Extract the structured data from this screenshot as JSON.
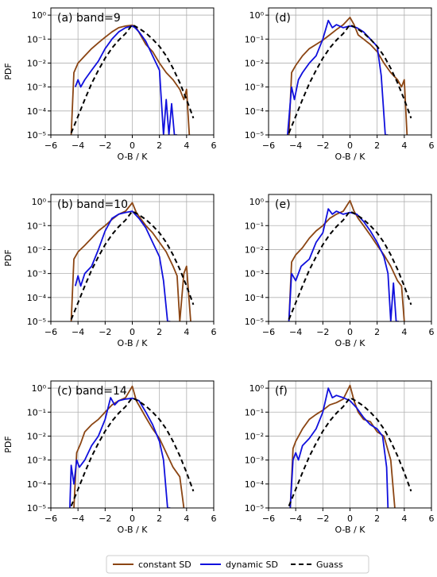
{
  "figure": {
    "legend": {
      "items": [
        {
          "label": "constant SD",
          "color": "#8B4513",
          "style": "solid"
        },
        {
          "label": "dynamic SD",
          "color": "#1010DD",
          "style": "solid"
        },
        {
          "label": "Guass",
          "color": "#000000",
          "style": "dashed"
        }
      ]
    }
  },
  "chart_data": [
    {
      "type": "line",
      "panel_label": "(a) band=9",
      "xlabel": "O-B / K",
      "ylabel": "PDF",
      "xlim": [
        -6,
        6
      ],
      "ylim": [
        1e-05,
        2
      ],
      "yscale": "log",
      "xticks": [
        "−6",
        "−4",
        "−2",
        "0",
        "2",
        "4",
        "6"
      ],
      "yticks": [
        "10⁰",
        "10⁻¹",
        "10⁻²",
        "10⁻³",
        "10⁻⁴",
        "10⁻⁵"
      ],
      "grid": true,
      "show_ylabel": true,
      "series": [
        {
          "name": "constant SD",
          "color": "#8B4513",
          "x": [
            -4.5,
            -4.3,
            -4.0,
            -3.5,
            -3.0,
            -2.5,
            -2.0,
            -1.5,
            -1.0,
            -0.5,
            0.0,
            0.3,
            0.6,
            1.0,
            1.5,
            2.0,
            2.5,
            3.0,
            3.5,
            3.8,
            4.0,
            4.2
          ],
          "y": [
            1e-05,
            0.004,
            0.01,
            0.02,
            0.04,
            0.07,
            0.12,
            0.2,
            0.3,
            0.35,
            0.38,
            0.3,
            0.15,
            0.06,
            0.03,
            0.01,
            0.004,
            0.002,
            0.0008,
            0.0003,
            0.0008,
            1e-05
          ]
        },
        {
          "name": "dynamic SD",
          "color": "#1010DD",
          "x": [
            -4.2,
            -4.0,
            -3.8,
            -3.5,
            -3.0,
            -2.5,
            -2.0,
            -1.5,
            -1.0,
            -0.5,
            0.0,
            0.2,
            0.5,
            1.0,
            1.5,
            2.0,
            2.3,
            2.5,
            2.7,
            2.9,
            3.1,
            3.3
          ],
          "y": [
            0.001,
            0.002,
            0.001,
            0.002,
            0.005,
            0.012,
            0.04,
            0.1,
            0.2,
            0.3,
            0.35,
            0.3,
            0.2,
            0.08,
            0.02,
            0.005,
            1e-05,
            0.0003,
            1e-05,
            0.0002,
            1e-05,
            1e-05
          ]
        },
        {
          "name": "Guass",
          "color": "#000000",
          "dashed": true,
          "x": [
            -4.5,
            -4.0,
            -3.5,
            -3.0,
            -2.5,
            -2.0,
            -1.5,
            -1.0,
            -0.5,
            0.0,
            0.5,
            1.0,
            1.5,
            2.0,
            2.5,
            3.0,
            3.5,
            4.0,
            4.5
          ],
          "y": [
            1.2e-05,
            6e-05,
            0.0003,
            0.0014,
            0.005,
            0.016,
            0.042,
            0.09,
            0.17,
            0.4,
            0.28,
            0.18,
            0.1,
            0.05,
            0.02,
            0.006,
            0.0015,
            0.0003,
            5e-05
          ]
        }
      ]
    },
    {
      "type": "line",
      "panel_label": "(d)",
      "xlabel": "O-B / K",
      "ylabel": "PDF",
      "xlim": [
        -6,
        6
      ],
      "ylim": [
        1e-05,
        2
      ],
      "yscale": "log",
      "xticks": [
        "−6",
        "−4",
        "−2",
        "0",
        "2",
        "4",
        "6"
      ],
      "yticks": [
        "10⁰",
        "10⁻¹",
        "10⁻²",
        "10⁻³",
        "10⁻⁴",
        "10⁻⁵"
      ],
      "grid": true,
      "show_ylabel": false,
      "series": [
        {
          "name": "constant SD",
          "color": "#8B4513",
          "x": [
            -4.5,
            -4.3,
            -4.0,
            -3.5,
            -3.0,
            -2.5,
            -2.0,
            -1.5,
            -1.0,
            -0.5,
            0.0,
            0.3,
            0.6,
            1.0,
            1.5,
            2.0,
            2.5,
            3.0,
            3.5,
            3.8,
            4.0,
            4.2
          ],
          "y": [
            1e-05,
            0.004,
            0.008,
            0.02,
            0.04,
            0.06,
            0.09,
            0.15,
            0.25,
            0.4,
            0.8,
            0.4,
            0.15,
            0.1,
            0.06,
            0.03,
            0.01,
            0.004,
            0.002,
            0.001,
            0.002,
            1e-05
          ]
        },
        {
          "name": "dynamic SD",
          "color": "#1010DD",
          "x": [
            -4.6,
            -4.3,
            -4.1,
            -3.8,
            -3.5,
            -3.0,
            -2.5,
            -2.0,
            -1.6,
            -1.3,
            -1.0,
            -0.5,
            0.0,
            0.5,
            1.0,
            1.5,
            2.0,
            2.3,
            2.6,
            2.8
          ],
          "y": [
            1e-05,
            0.001,
            0.0003,
            0.002,
            0.004,
            0.01,
            0.02,
            0.1,
            0.6,
            0.3,
            0.4,
            0.3,
            0.35,
            0.3,
            0.2,
            0.1,
            0.05,
            0.003,
            1e-05,
            1e-05
          ]
        },
        {
          "name": "Guass",
          "color": "#000000",
          "dashed": true,
          "x": [
            -4.5,
            -4.0,
            -3.5,
            -3.0,
            -2.5,
            -2.0,
            -1.5,
            -1.0,
            -0.5,
            0.0,
            0.5,
            1.0,
            1.5,
            2.0,
            2.5,
            3.0,
            3.5,
            4.0,
            4.5
          ],
          "y": [
            1.2e-05,
            6e-05,
            0.0003,
            0.0014,
            0.005,
            0.016,
            0.042,
            0.09,
            0.17,
            0.4,
            0.28,
            0.18,
            0.1,
            0.05,
            0.02,
            0.006,
            0.0015,
            0.0003,
            5e-05
          ]
        }
      ]
    },
    {
      "type": "line",
      "panel_label": "(b) band=10",
      "xlabel": "O-B / K",
      "ylabel": "PDF",
      "xlim": [
        -6,
        6
      ],
      "ylim": [
        1e-05,
        2
      ],
      "yscale": "log",
      "xticks": [
        "−6",
        "−4",
        "−2",
        "0",
        "2",
        "4",
        "6"
      ],
      "yticks": [
        "10⁰",
        "10⁻¹",
        "10⁻²",
        "10⁻³",
        "10⁻⁴",
        "10⁻⁵"
      ],
      "grid": true,
      "show_ylabel": true,
      "series": [
        {
          "name": "constant SD",
          "color": "#8B4513",
          "x": [
            -4.5,
            -4.3,
            -4.0,
            -3.5,
            -3.0,
            -2.5,
            -2.0,
            -1.5,
            -1.0,
            -0.5,
            0.0,
            0.3,
            0.6,
            1.0,
            1.5,
            2.0,
            2.5,
            3.0,
            3.3,
            3.5,
            3.8,
            4.0,
            4.3
          ],
          "y": [
            1e-05,
            0.004,
            0.008,
            0.015,
            0.03,
            0.06,
            0.1,
            0.18,
            0.3,
            0.4,
            0.9,
            0.35,
            0.2,
            0.1,
            0.05,
            0.02,
            0.008,
            0.002,
            0.0008,
            1e-05,
            0.001,
            0.002,
            1e-05
          ]
        },
        {
          "name": "dynamic SD",
          "color": "#1010DD",
          "x": [
            -4.2,
            -4.0,
            -3.8,
            -3.5,
            -3.0,
            -2.5,
            -2.0,
            -1.5,
            -1.0,
            -0.5,
            0.0,
            0.2,
            0.5,
            1.0,
            1.5,
            2.0,
            2.3,
            2.6,
            2.8
          ],
          "y": [
            0.0003,
            0.0008,
            0.0003,
            0.001,
            0.002,
            0.01,
            0.06,
            0.2,
            0.3,
            0.35,
            0.4,
            0.3,
            0.2,
            0.08,
            0.02,
            0.005,
            0.0005,
            1e-05,
            1e-05
          ]
        },
        {
          "name": "Guass",
          "color": "#000000",
          "dashed": true,
          "x": [
            -4.5,
            -4.0,
            -3.5,
            -3.0,
            -2.5,
            -2.0,
            -1.5,
            -1.0,
            -0.5,
            0.0,
            0.5,
            1.0,
            1.5,
            2.0,
            2.5,
            3.0,
            3.5,
            4.0,
            4.5
          ],
          "y": [
            1.2e-05,
            6e-05,
            0.0003,
            0.0014,
            0.005,
            0.016,
            0.042,
            0.09,
            0.17,
            0.4,
            0.28,
            0.18,
            0.1,
            0.05,
            0.02,
            0.006,
            0.0015,
            0.0003,
            5e-05
          ]
        }
      ]
    },
    {
      "type": "line",
      "panel_label": "(e)",
      "xlabel": "O-B / K",
      "ylabel": "PDF",
      "xlim": [
        -6,
        6
      ],
      "ylim": [
        1e-05,
        2
      ],
      "yscale": "log",
      "xticks": [
        "−6",
        "−4",
        "−2",
        "0",
        "2",
        "4",
        "6"
      ],
      "yticks": [
        "10⁰",
        "10⁻¹",
        "10⁻²",
        "10⁻³",
        "10⁻⁴",
        "10⁻⁵"
      ],
      "grid": true,
      "show_ylabel": false,
      "series": [
        {
          "name": "constant SD",
          "color": "#8B4513",
          "x": [
            -4.5,
            -4.3,
            -4.0,
            -3.5,
            -3.0,
            -2.5,
            -2.0,
            -1.5,
            -1.0,
            -0.5,
            0.0,
            0.3,
            0.6,
            1.0,
            1.5,
            2.0,
            2.5,
            3.0,
            3.5,
            3.8,
            4.0
          ],
          "y": [
            1e-05,
            0.003,
            0.006,
            0.012,
            0.03,
            0.06,
            0.1,
            0.2,
            0.3,
            0.4,
            1.1,
            0.4,
            0.2,
            0.1,
            0.04,
            0.015,
            0.006,
            0.002,
            0.0005,
            0.0003,
            1e-05
          ]
        },
        {
          "name": "dynamic SD",
          "color": "#1010DD",
          "x": [
            -4.5,
            -4.3,
            -4.0,
            -3.6,
            -3.0,
            -2.5,
            -2.0,
            -1.6,
            -1.3,
            -1.0,
            -0.5,
            0.0,
            0.5,
            1.0,
            1.5,
            2.0,
            2.5,
            2.8,
            3.0,
            3.2,
            3.4,
            3.6
          ],
          "y": [
            1e-05,
            0.001,
            0.0005,
            0.002,
            0.004,
            0.02,
            0.05,
            0.5,
            0.3,
            0.4,
            0.3,
            0.35,
            0.3,
            0.15,
            0.06,
            0.02,
            0.005,
            0.001,
            1e-05,
            0.0004,
            1e-05,
            1e-05
          ]
        },
        {
          "name": "Guass",
          "color": "#000000",
          "dashed": true,
          "x": [
            -4.5,
            -4.0,
            -3.5,
            -3.0,
            -2.5,
            -2.0,
            -1.5,
            -1.0,
            -0.5,
            0.0,
            0.5,
            1.0,
            1.5,
            2.0,
            2.5,
            3.0,
            3.5,
            4.0,
            4.5
          ],
          "y": [
            1.2e-05,
            6e-05,
            0.0003,
            0.0014,
            0.005,
            0.016,
            0.042,
            0.09,
            0.17,
            0.4,
            0.28,
            0.18,
            0.1,
            0.05,
            0.02,
            0.006,
            0.0015,
            0.0003,
            5e-05
          ]
        }
      ]
    },
    {
      "type": "line",
      "panel_label": "(c) band=14",
      "xlabel": "O-B / K",
      "ylabel": "PDF",
      "xlim": [
        -6,
        6
      ],
      "ylim": [
        1e-05,
        2
      ],
      "yscale": "log",
      "xticks": [
        "−6",
        "−4",
        "−2",
        "0",
        "2",
        "4",
        "6"
      ],
      "yticks": [
        "10⁰",
        "10⁻¹",
        "10⁻²",
        "10⁻³",
        "10⁻⁴",
        "10⁻⁵"
      ],
      "grid": true,
      "show_ylabel": true,
      "series": [
        {
          "name": "constant SD",
          "color": "#8B4513",
          "x": [
            -4.3,
            -4.1,
            -3.8,
            -3.5,
            -3.0,
            -2.5,
            -2.0,
            -1.5,
            -1.0,
            -0.5,
            0.0,
            0.3,
            0.6,
            1.0,
            1.5,
            2.0,
            2.5,
            3.0,
            3.5,
            3.8
          ],
          "y": [
            1e-05,
            0.002,
            0.005,
            0.015,
            0.03,
            0.05,
            0.1,
            0.2,
            0.3,
            0.4,
            1.2,
            0.3,
            0.15,
            0.06,
            0.02,
            0.008,
            0.002,
            0.0005,
            0.0002,
            1e-05
          ]
        },
        {
          "name": "dynamic SD",
          "color": "#1010DD",
          "x": [
            -4.6,
            -4.5,
            -4.3,
            -4.1,
            -3.9,
            -3.5,
            -3.0,
            -2.5,
            -2.0,
            -1.6,
            -1.3,
            -1.0,
            -0.5,
            0.0,
            0.5,
            1.0,
            1.5,
            2.0,
            2.3,
            2.6,
            2.8
          ],
          "y": [
            1e-05,
            0.0006,
            0.0001,
            0.001,
            0.0005,
            0.001,
            0.004,
            0.01,
            0.05,
            0.4,
            0.2,
            0.3,
            0.35,
            0.38,
            0.3,
            0.1,
            0.03,
            0.006,
            0.001,
            1e-05,
            1e-05
          ]
        },
        {
          "name": "Guass",
          "color": "#000000",
          "dashed": true,
          "x": [
            -4.5,
            -4.0,
            -3.5,
            -3.0,
            -2.5,
            -2.0,
            -1.5,
            -1.0,
            -0.5,
            0.0,
            0.5,
            1.0,
            1.5,
            2.0,
            2.5,
            3.0,
            3.5,
            4.0,
            4.5
          ],
          "y": [
            1.2e-05,
            6e-05,
            0.0003,
            0.0014,
            0.005,
            0.016,
            0.042,
            0.09,
            0.17,
            0.4,
            0.28,
            0.18,
            0.1,
            0.05,
            0.02,
            0.006,
            0.0015,
            0.0003,
            5e-05
          ]
        }
      ]
    },
    {
      "type": "line",
      "panel_label": "(f)",
      "xlabel": "O-B / K",
      "ylabel": "PDF",
      "xlim": [
        -6,
        6
      ],
      "ylim": [
        1e-05,
        2
      ],
      "yscale": "log",
      "xticks": [
        "−6",
        "−4",
        "−2",
        "0",
        "2",
        "4",
        "6"
      ],
      "yticks": [
        "10⁰",
        "10⁻¹",
        "10⁻²",
        "10⁻³",
        "10⁻⁴",
        "10⁻⁵"
      ],
      "grid": true,
      "show_ylabel": false,
      "series": [
        {
          "name": "constant SD",
          "color": "#8B4513",
          "x": [
            -4.4,
            -4.2,
            -4.0,
            -3.5,
            -3.0,
            -2.5,
            -2.0,
            -1.5,
            -1.0,
            -0.5,
            0.0,
            0.3,
            0.6,
            1.0,
            1.5,
            2.0,
            2.5,
            3.0,
            3.3
          ],
          "y": [
            1e-05,
            0.003,
            0.006,
            0.02,
            0.05,
            0.08,
            0.12,
            0.2,
            0.25,
            0.35,
            1.3,
            0.3,
            0.1,
            0.05,
            0.04,
            0.015,
            0.01,
            0.001,
            1e-05
          ]
        },
        {
          "name": "dynamic SD",
          "color": "#1010DD",
          "x": [
            -4.4,
            -4.2,
            -4.0,
            -3.8,
            -3.5,
            -3.0,
            -2.5,
            -2.0,
            -1.6,
            -1.3,
            -1.0,
            -0.5,
            0.0,
            0.5,
            1.0,
            1.5,
            2.0,
            2.4,
            2.7,
            2.8
          ],
          "y": [
            1e-05,
            0.001,
            0.002,
            0.001,
            0.004,
            0.008,
            0.02,
            0.1,
            1.0,
            0.4,
            0.5,
            0.4,
            0.3,
            0.15,
            0.06,
            0.03,
            0.02,
            0.01,
            0.0005,
            1e-05
          ]
        },
        {
          "name": "Guass",
          "color": "#000000",
          "dashed": true,
          "x": [
            -4.5,
            -4.0,
            -3.5,
            -3.0,
            -2.5,
            -2.0,
            -1.5,
            -1.0,
            -0.5,
            0.0,
            0.5,
            1.0,
            1.5,
            2.0,
            2.5,
            3.0,
            3.5,
            4.0,
            4.5
          ],
          "y": [
            1.2e-05,
            6e-05,
            0.0003,
            0.0014,
            0.005,
            0.016,
            0.042,
            0.09,
            0.17,
            0.4,
            0.28,
            0.18,
            0.1,
            0.05,
            0.02,
            0.006,
            0.0015,
            0.0003,
            5e-05
          ]
        }
      ]
    }
  ]
}
